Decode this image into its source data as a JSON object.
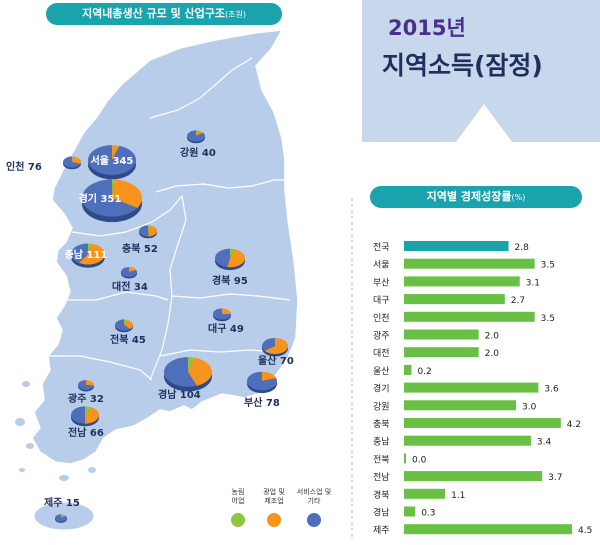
{
  "header": {
    "main_title": "지역내총생산 규모 및 산업구조",
    "main_unit": "(조원)",
    "year": "2015년",
    "title": "지역소득(잠정)",
    "growth_title": "지역별 경제성장률",
    "growth_unit": "(%)"
  },
  "colors": {
    "agriculture": "#8dc63f",
    "mining_manufacturing": "#f7941d",
    "services_other": "#4f6fba",
    "national_bar": "#1aa3ad",
    "region_bar": "#6abf45",
    "map_fill": "#b8cdea",
    "title_bg": "#c7d8ec"
  },
  "chart_data": [
    {
      "type": "pie",
      "title": "지역내총생산 규모 및 산업구조",
      "unit": "조원",
      "legend": [
        "농림어업",
        "광업 및 제조업",
        "서비스업 및 기타"
      ],
      "regions": [
        {
          "name": "서울",
          "label": "서울 345",
          "value": 345
        },
        {
          "name": "경기",
          "label": "경기 351",
          "value": 351
        },
        {
          "name": "인천",
          "label": "인천 76",
          "value": 76
        },
        {
          "name": "강원",
          "label": "강원 40",
          "value": 40
        },
        {
          "name": "충북",
          "label": "충북 52",
          "value": 52
        },
        {
          "name": "충남",
          "label": "충남 111",
          "value": 111
        },
        {
          "name": "대전",
          "label": "대전 34",
          "value": 34
        },
        {
          "name": "경북",
          "label": "경북 95",
          "value": 95
        },
        {
          "name": "대구",
          "label": "대구 49",
          "value": 49
        },
        {
          "name": "전북",
          "label": "전북 45",
          "value": 45
        },
        {
          "name": "울산",
          "label": "울산 70",
          "value": 70
        },
        {
          "name": "광주",
          "label": "광주 32",
          "value": 32
        },
        {
          "name": "경남",
          "label": "경남 104",
          "value": 104
        },
        {
          "name": "부산",
          "label": "부산 78",
          "value": 78
        },
        {
          "name": "전남",
          "label": "전남 66",
          "value": 66
        },
        {
          "name": "제주",
          "label": "제주 15",
          "value": 15
        }
      ]
    },
    {
      "type": "bar",
      "title": "지역별 경제성장률",
      "unit": "%",
      "categories": [
        "전국",
        "서울",
        "부산",
        "대구",
        "인천",
        "광주",
        "대전",
        "울산",
        "경기",
        "강원",
        "충북",
        "충남",
        "전북",
        "전남",
        "경북",
        "경남",
        "제주"
      ],
      "values": [
        2.8,
        3.5,
        3.1,
        2.7,
        3.5,
        2.0,
        2.0,
        0.2,
        3.6,
        3.0,
        4.2,
        3.4,
        0.0,
        3.7,
        1.1,
        0.3,
        4.5
      ],
      "value_labels": [
        "2.8",
        "3.5",
        "3.1",
        "2.7",
        "3.5",
        "2.0",
        "2.0",
        "0.2",
        "3.6",
        "3.0",
        "4.2",
        "3.4",
        "0.0",
        "3.7",
        "1.1",
        "0.3",
        "4.5"
      ],
      "orientation": "horizontal",
      "xlim": [
        0,
        4.5
      ]
    }
  ]
}
